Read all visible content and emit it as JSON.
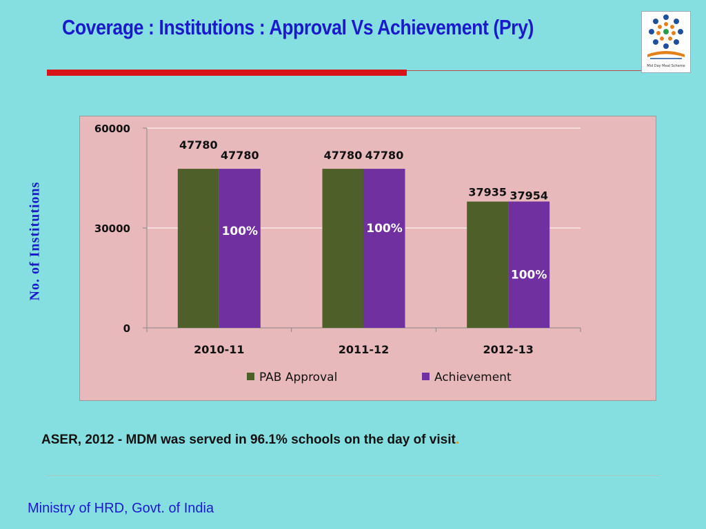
{
  "title": "Coverage : Institutions : Approval Vs Achievement (Pry)",
  "logo": {
    "icon": "mid-day-meal-logo",
    "caption": "Mid Day Meal Scheme"
  },
  "note": {
    "text": "ASER, 2012 -  MDM was served in 96.1% schools on the day of visit",
    "trailing": "."
  },
  "footer": "Ministry of HRD, Govt. of India",
  "colors": {
    "title": "#1a1acc",
    "background": "#85dfe0",
    "plot_background": "#e8b9ba",
    "accent_bar": "#d8141b",
    "approval": "#4e5f2a",
    "achievement": "#7030a0"
  },
  "chart_data": {
    "type": "bar",
    "title": "",
    "xlabel": "",
    "ylabel": "No. of Institutions",
    "categories": [
      "2010-11",
      "2011-12",
      "2012-13"
    ],
    "series": [
      {
        "name": "PAB Approval",
        "values": [
          47780,
          47780,
          37935
        ],
        "color": "#4e5f2a"
      },
      {
        "name": "Achievement",
        "values": [
          47780,
          47780,
          37954
        ],
        "color": "#7030a0"
      }
    ],
    "percent_labels": [
      "100%",
      "100%",
      "100%"
    ],
    "ylim": [
      0,
      60000
    ],
    "yticks": [
      0,
      30000,
      60000
    ],
    "grid": true,
    "legend": "bottom"
  }
}
